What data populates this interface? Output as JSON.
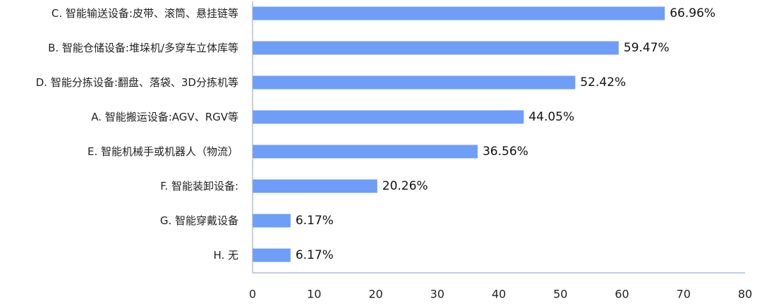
{
  "chart_data": {
    "type": "bar",
    "orientation": "horizontal",
    "categories": [
      "C. 智能输送设备:皮带、滚筒、悬挂链等",
      "B. 智能仓储设备:堆垛机/多穿车立体库等",
      "D. 智能分拣设备:翻盘、落袋、3D分拣机等",
      "A. 智能搬运设备:AGV、RGV等",
      "E. 智能机械手或机器人（物流）",
      "F. 智能装卸设备:",
      "G. 智能穿戴设备",
      "H. 无"
    ],
    "values": [
      66.96,
      59.47,
      52.42,
      44.05,
      36.56,
      20.26,
      6.17,
      6.17
    ],
    "value_labels": [
      "66.96%",
      "59.47%",
      "52.42%",
      "44.05%",
      "36.56%",
      "20.26%",
      "6.17%",
      "6.17%"
    ],
    "xlim": [
      0,
      80
    ],
    "xticks": [
      0,
      10,
      20,
      30,
      40,
      50,
      60,
      70,
      80
    ],
    "bar_color": "#6e9ef7",
    "axis_color": "#9bb0d8",
    "grid": false,
    "title": "",
    "xlabel": "",
    "ylabel": ""
  }
}
